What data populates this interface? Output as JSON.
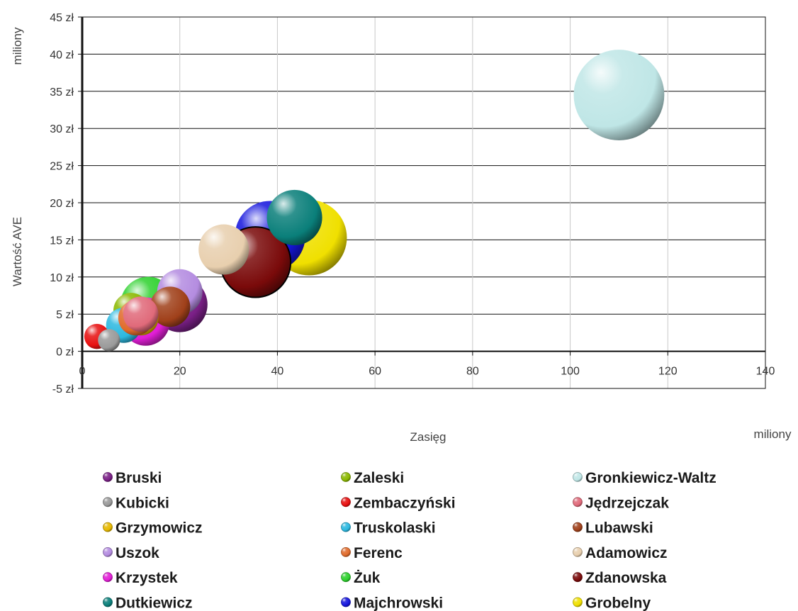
{
  "chart_data": {
    "type": "bubble",
    "xlabel": "Zasięg",
    "x_unit": "miliony",
    "ylabel": "Wartość AVE",
    "y_unit": "miliony",
    "xlim": [
      0,
      140
    ],
    "ylim": [
      -5,
      45
    ],
    "x_ticks": [
      "0",
      "20",
      "40",
      "60",
      "80",
      "100",
      "120",
      "140"
    ],
    "y_ticks": [
      "-5 zł",
      "0 zł",
      "5 zł",
      "10 zł",
      "15 zł",
      "20 zł",
      "25 zł",
      "30 zł",
      "35 zł",
      "40 zł",
      "45 zł"
    ],
    "grid": true,
    "legend_position": "bottom",
    "series": [
      {
        "name": "Bruski",
        "x": 20,
        "y": 6.3,
        "size": 5.5,
        "color": "#7a1f86"
      },
      {
        "name": "Kubicki",
        "x": 5.5,
        "y": 1.5,
        "size": 2.2,
        "color": "#9a9a9a"
      },
      {
        "name": "Grzymowicz",
        "x": 12,
        "y": 4.5,
        "size": 3.5,
        "color": "#e6b800"
      },
      {
        "name": "Uszok",
        "x": 20,
        "y": 8,
        "size": 4.5,
        "color": "#b48ce0"
      },
      {
        "name": "Krzystek",
        "x": 13,
        "y": 4,
        "size": 4.8,
        "color": "#e21ed6"
      },
      {
        "name": "Dutkiewicz",
        "x": 43.5,
        "y": 18,
        "size": 5.5,
        "color": "#0a7f7a"
      },
      {
        "name": "Zaleski",
        "x": 10,
        "y": 5.5,
        "size": 3.5,
        "color": "#8ab800"
      },
      {
        "name": "Zembaczyński",
        "x": 3,
        "y": 2,
        "size": 2.5,
        "color": "#e81010"
      },
      {
        "name": "Truskolaski",
        "x": 8.5,
        "y": 3.5,
        "size": 3.5,
        "color": "#2bb8e0"
      },
      {
        "name": "Ferenc",
        "x": 11,
        "y": 4.5,
        "size": 3.5,
        "color": "#e06b2b"
      },
      {
        "name": "Żuk",
        "x": 13.5,
        "y": 6.3,
        "size": 5.5,
        "color": "#2dd12d"
      },
      {
        "name": "Majchrowski",
        "x": 38.5,
        "y": 15.5,
        "size": 7,
        "color": "#1515dd"
      },
      {
        "name": "Gronkiewicz-Waltz",
        "x": 110,
        "y": 34.5,
        "size": 9,
        "color": "#bfe6e6"
      },
      {
        "name": "Jędrzejczak",
        "x": 12,
        "y": 5,
        "size": 3.5,
        "color": "#e06a7a"
      },
      {
        "name": "Lubawski",
        "x": 18,
        "y": 6,
        "size": 4,
        "color": "#a0401a"
      },
      {
        "name": "Adamowicz",
        "x": 29,
        "y": 13.7,
        "size": 5,
        "color": "#e8cfae"
      },
      {
        "name": "Zdanowska",
        "x": 35.5,
        "y": 12,
        "size": 7,
        "color": "#7a0a0a"
      },
      {
        "name": "Grobelny",
        "x": 46.5,
        "y": 15.3,
        "size": 7.5,
        "color": "#f0e000"
      }
    ]
  }
}
